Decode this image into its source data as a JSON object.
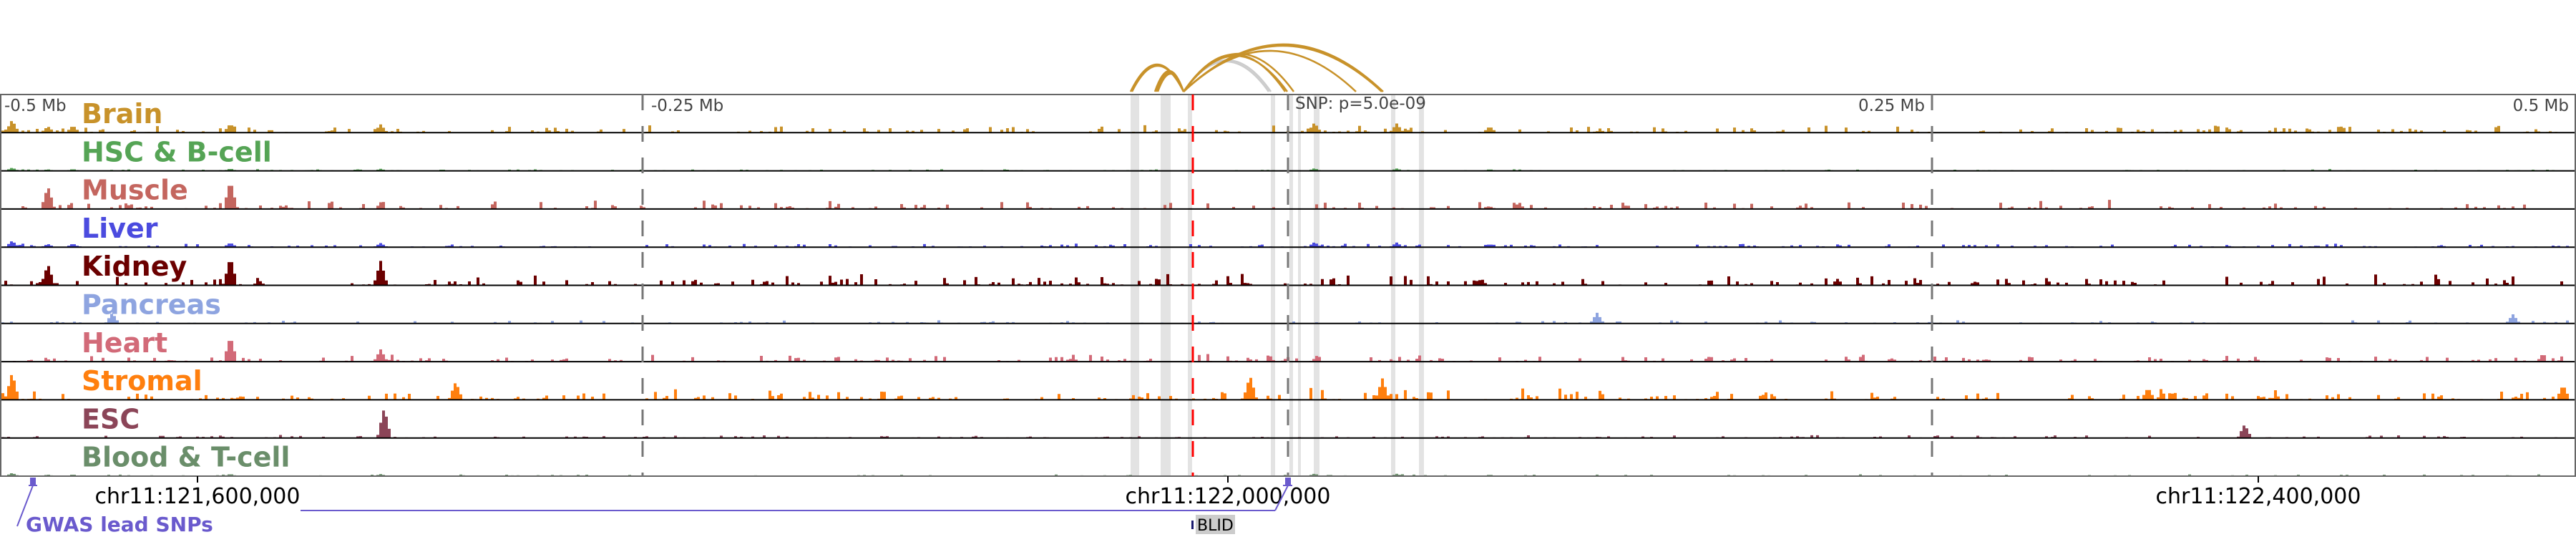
{
  "axis": {
    "ticks": [
      "-0.5 Mb",
      "-0.25 Mb",
      "0.25 Mb",
      "0.5 Mb"
    ],
    "snp_label": "SNP: p=5.0e-09"
  },
  "tracks": [
    {
      "label": "Brain",
      "color": "#c8922a"
    },
    {
      "label": "HSC & B-cell",
      "color": "#55a455"
    },
    {
      "label": "Muscle",
      "color": "#c4665f"
    },
    {
      "label": "Liver",
      "color": "#4b4bdf"
    },
    {
      "label": "Kidney",
      "color": "#6b0000"
    },
    {
      "label": "Pancreas",
      "color": "#8ea4e0"
    },
    {
      "label": "Heart",
      "color": "#d26a78"
    },
    {
      "label": "Stromal",
      "color": "#ff7f0e"
    },
    {
      "label": "ESC",
      "color": "#8b4558"
    },
    {
      "label": "Blood & T-cell",
      "color": "#6a8e6a"
    }
  ],
  "coordinates": [
    "chr11:121,600,000",
    "chr11:122,000,000",
    "chr11:122,400,000"
  ],
  "gwas": {
    "label": "GWAS lead SNPs",
    "color": "#6a5acd"
  },
  "gene": {
    "label": "BLID"
  },
  "colors": {
    "snp_line": "#ff0000",
    "highlight": "#e3e3e3",
    "arc": "#c8922a",
    "arc_gray": "#cccccc"
  }
}
